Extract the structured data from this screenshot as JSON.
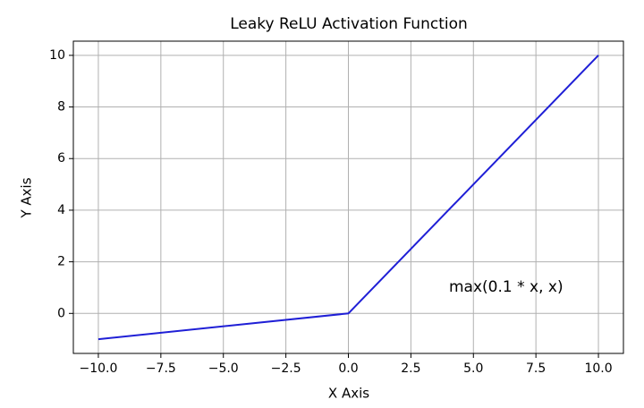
{
  "chart_data": {
    "type": "line",
    "title": "Leaky ReLU Activation Function",
    "x_label": "X Axis",
    "y_label": "Y Axis",
    "annotation": "max(0.1 * x, x)",
    "x": [
      -10,
      0,
      10
    ],
    "series": [
      {
        "name": "Leaky ReLU",
        "color": "#1f1fd6",
        "values": [
          -1,
          0,
          10
        ]
      }
    ],
    "xlim": [
      -11,
      11
    ],
    "ylim": [
      -1.55,
      10.55
    ],
    "xticks": [
      {
        "value": -10,
        "label": "−10.0"
      },
      {
        "value": -7.5,
        "label": "−7.5"
      },
      {
        "value": -5,
        "label": "−5.0"
      },
      {
        "value": -2.5,
        "label": "−2.5"
      },
      {
        "value": 0,
        "label": "0.0"
      },
      {
        "value": 2.5,
        "label": "2.5"
      },
      {
        "value": 5,
        "label": "5.0"
      },
      {
        "value": 7.5,
        "label": "7.5"
      },
      {
        "value": 10,
        "label": "10.0"
      }
    ],
    "yticks": [
      0,
      2,
      4,
      6,
      8,
      10
    ],
    "grid": true
  }
}
